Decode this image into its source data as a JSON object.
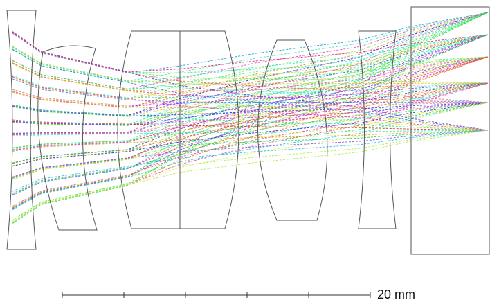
{
  "scale_bar": {
    "label": "20 mm"
  }
}
